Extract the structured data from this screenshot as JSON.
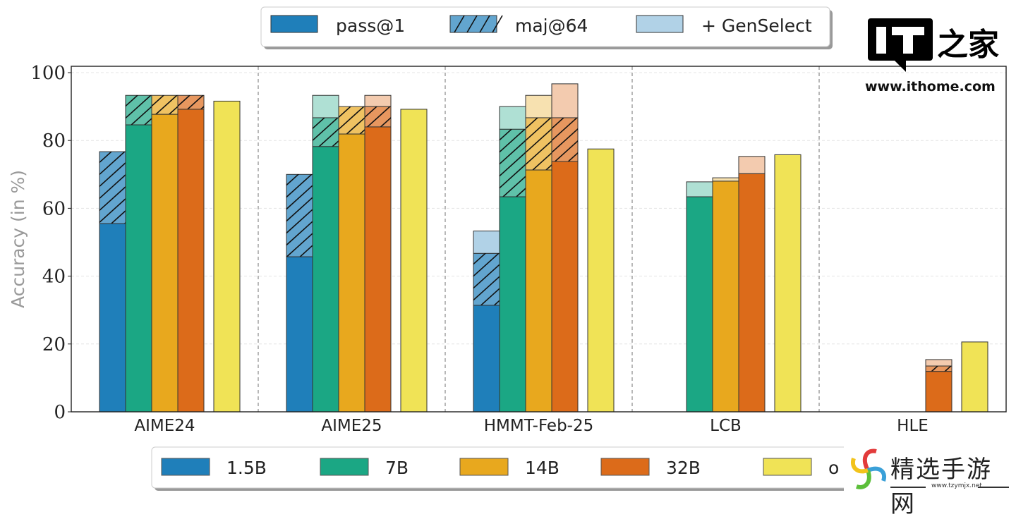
{
  "chart_data": {
    "type": "bar",
    "title": "",
    "xlabel": "",
    "ylabel": "Accuracy (in %)",
    "ylim": [
      0,
      100
    ],
    "yticks": [
      0,
      20,
      40,
      60,
      80,
      100
    ],
    "grid": true,
    "categories": [
      "AIME24",
      "AIME25",
      "HMMT-Feb-25",
      "LCB",
      "HLE"
    ],
    "models": [
      {
        "name": "1.5B",
        "color": "#1f7fba"
      },
      {
        "name": "7B",
        "color": "#1ba784"
      },
      {
        "name": "14B",
        "color": "#e8a81e"
      },
      {
        "name": "32B",
        "color": "#dc6b1a"
      },
      {
        "name": "o",
        "color": "#f0e356"
      }
    ],
    "series": [
      {
        "name": "1.5B",
        "pass@1": [
          55.5,
          45.7,
          31.4,
          null,
          null
        ],
        "maj@64": [
          76.7,
          70.0,
          46.7,
          null,
          null
        ],
        "+ GenSelect": [
          null,
          null,
          53.3,
          null,
          null
        ]
      },
      {
        "name": "7B",
        "pass@1": [
          84.6,
          78.2,
          63.4,
          63.4,
          null
        ],
        "maj@64": [
          93.3,
          86.7,
          83.3,
          null,
          null
        ],
        "+ GenSelect": [
          null,
          93.3,
          90.0,
          67.8,
          null
        ]
      },
      {
        "name": "14B",
        "pass@1": [
          87.7,
          81.9,
          71.3,
          68.0,
          null
        ],
        "maj@64": [
          93.3,
          90.0,
          86.7,
          null,
          null
        ],
        "+ GenSelect": [
          null,
          null,
          93.3,
          69.0,
          null
        ]
      },
      {
        "name": "32B",
        "pass@1": [
          89.2,
          84.0,
          73.8,
          70.2,
          11.9
        ],
        "maj@64": [
          93.3,
          90.0,
          86.7,
          null,
          13.5
        ],
        "+ GenSelect": [
          null,
          93.3,
          96.7,
          75.3,
          15.4
        ]
      },
      {
        "name": "o",
        "pass@1": [
          91.6,
          89.2,
          77.5,
          75.8,
          20.6
        ],
        "maj@64": [
          null,
          null,
          null,
          null,
          null
        ],
        "+ GenSelect": [
          null,
          null,
          null,
          null,
          null
        ]
      }
    ],
    "legend_top": {
      "placement": "top-center",
      "entries": [
        {
          "label": "pass@1",
          "style": "solid"
        },
        {
          "label": "maj@64",
          "style": "hatched"
        },
        {
          "label": "+ GenSelect",
          "style": "light"
        }
      ]
    },
    "legend_bottom": {
      "placement": "bottom-center",
      "entries": [
        "1.5B",
        "7B",
        "14B",
        "32B",
        "o"
      ]
    }
  },
  "watermarks": {
    "ithome_logo": "IT之家",
    "ithome_url": "www.ithome.com",
    "tzymjx_name": "精选手游网",
    "tzymjx_url": "www.tzymjx.net"
  }
}
